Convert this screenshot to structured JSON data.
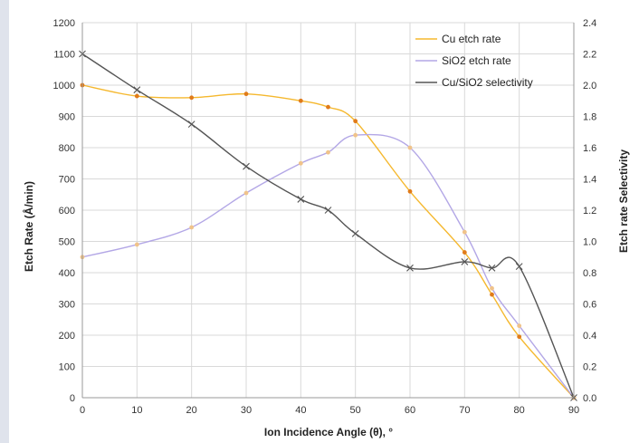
{
  "chart_data": {
    "type": "line",
    "title": "",
    "xlabel": "Ion Incidence Angle (θ), °",
    "ylabel": "Etch Rate (Å/min)",
    "y2label": "Etch rate Selectivity",
    "xlim": [
      0,
      90
    ],
    "ylim": [
      0,
      1200
    ],
    "y2lim": [
      0,
      2.4
    ],
    "x_ticks": [
      "0",
      "10",
      "20",
      "30",
      "40",
      "50",
      "60",
      "70",
      "80",
      "90"
    ],
    "y_ticks": [
      "0",
      "100",
      "200",
      "300",
      "400",
      "500",
      "600",
      "700",
      "800",
      "900",
      "1000",
      "1100",
      "1200"
    ],
    "y2_ticks": [
      "0.0",
      "0.2",
      "0.4",
      "0.6",
      "0.8",
      "1.0",
      "1.2",
      "1.4",
      "1.6",
      "1.8",
      "2.0",
      "2.2",
      "2.4"
    ],
    "grid": true,
    "legend_position": "top-right",
    "series": [
      {
        "name": "Cu etch rate",
        "axis": "left",
        "color": "#f5b82e",
        "marker_color": "#e07b1a",
        "marker": "dot",
        "x": [
          0,
          10,
          20,
          30,
          40,
          45,
          50,
          60,
          70,
          75,
          80,
          90
        ],
        "values": [
          1000,
          965,
          960,
          972,
          950,
          930,
          885,
          660,
          465,
          330,
          195,
          0
        ]
      },
      {
        "name": "SiO2 etch rate",
        "axis": "left",
        "color": "#b3a7e6",
        "marker_color": "#f0c38a",
        "marker": "dot",
        "x": [
          0,
          10,
          20,
          30,
          40,
          45,
          50,
          60,
          70,
          75,
          80,
          90
        ],
        "values": [
          450,
          490,
          545,
          655,
          750,
          785,
          840,
          800,
          530,
          350,
          230,
          0
        ]
      },
      {
        "name": "Cu/SiO2 selectivity",
        "axis": "right",
        "color": "#555555",
        "marker_color": "#555555",
        "marker": "x",
        "x": [
          0,
          10,
          20,
          30,
          40,
          45,
          50,
          60,
          70,
          75,
          80,
          90
        ],
        "values": [
          2.2,
          1.97,
          1.75,
          1.48,
          1.27,
          1.2,
          1.05,
          0.83,
          0.87,
          0.83,
          0.84,
          0.0
        ]
      }
    ]
  }
}
